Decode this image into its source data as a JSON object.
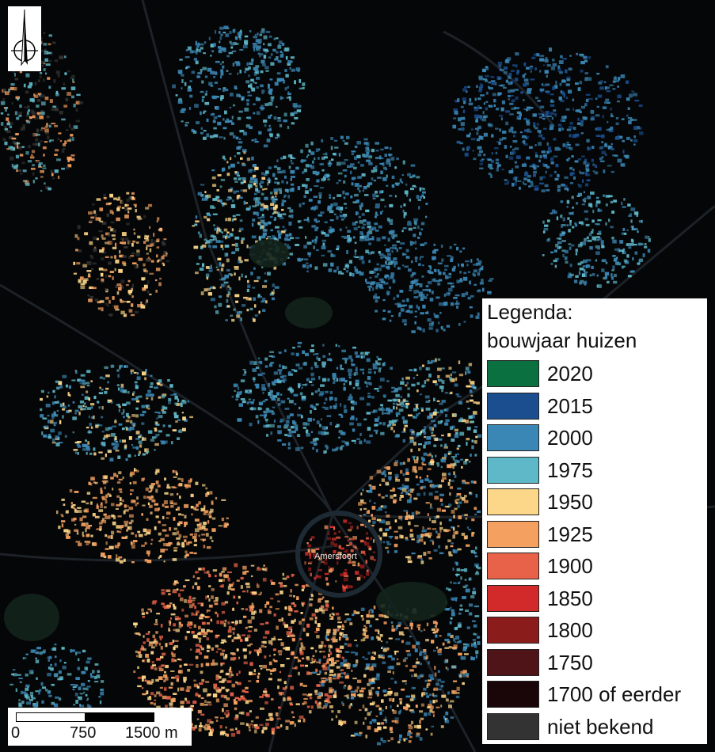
{
  "map": {
    "city_label": "Amersfoort",
    "background_color": "#050607"
  },
  "north_arrow": {
    "icon": "north-arrow-icon"
  },
  "legend": {
    "title_line1": "Legenda:",
    "title_line2": "bouwjaar huizen",
    "items": [
      {
        "label": "2020",
        "color": "#0b7040"
      },
      {
        "label": "2015",
        "color": "#1a4e8e"
      },
      {
        "label": "2000",
        "color": "#3a86b4"
      },
      {
        "label": "1975",
        "color": "#5fb8c8"
      },
      {
        "label": "1950",
        "color": "#fdd789"
      },
      {
        "label": "1925",
        "color": "#f4a060"
      },
      {
        "label": "1900",
        "color": "#e8624a"
      },
      {
        "label": "1850",
        "color": "#d22a2a"
      },
      {
        "label": "1800",
        "color": "#8b1c1c"
      },
      {
        "label": "1750",
        "color": "#4e1418"
      },
      {
        "label": "1700 of eerder",
        "color": "#1a0508"
      },
      {
        "label": "niet bekend",
        "color": "#333333"
      }
    ]
  },
  "scale_bar": {
    "label_0": "0",
    "label_1": "750",
    "label_2": "1500 m"
  }
}
